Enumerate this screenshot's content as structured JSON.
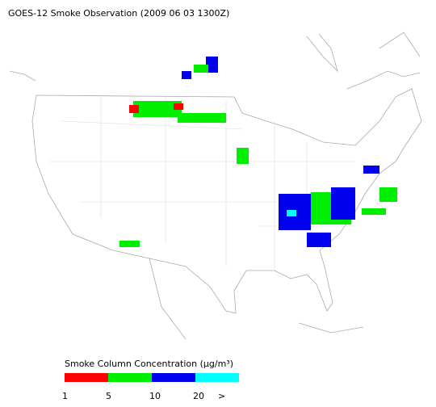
{
  "title": "GOES-12 Smoke Observation (2009 06 03  1300Z)",
  "legend": {
    "title": "Smoke Column Concentration (μg/m³)",
    "colors": [
      "#ff0000",
      "#00ee00",
      "#0000ee",
      "#00ffff"
    ],
    "labels": [
      "1",
      "5",
      "10",
      "20",
      ">"
    ]
  }
}
